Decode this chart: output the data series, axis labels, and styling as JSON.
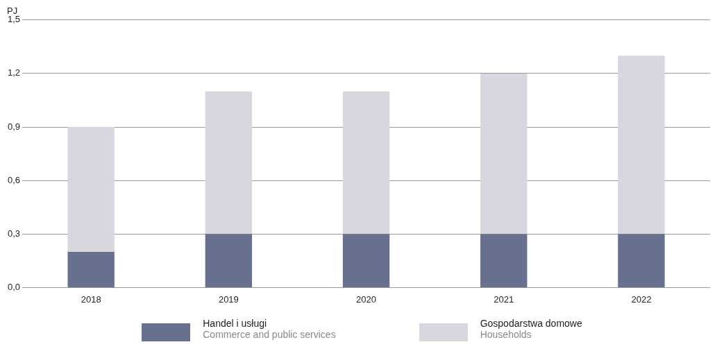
{
  "chart_data": {
    "type": "bar",
    "ylabel": "PJ",
    "categories": [
      "2018",
      "2019",
      "2020",
      "2021",
      "2022"
    ],
    "series": [
      {
        "name": "Handel i usługi\nCommerce and public services",
        "color": "#67718f",
        "values": [
          0.2,
          0.3,
          0.3,
          0.3,
          0.3
        ]
      },
      {
        "name": "Gospodarstwa domowe\nHouseholds",
        "color": "#d8d7e0",
        "values": [
          0.7,
          0.8,
          0.8,
          0.9,
          1.0
        ]
      }
    ],
    "stacked": true,
    "ylim": [
      0,
      1.5
    ],
    "yticks": [
      {
        "value": 0,
        "label": "0,0"
      },
      {
        "value": 0.3,
        "label": "0,3"
      },
      {
        "value": 0.6,
        "label": "0,6"
      },
      {
        "value": 0.9,
        "label": "0,9"
      },
      {
        "value": 1.2,
        "label": "1,2"
      },
      {
        "value": 1.5,
        "label": "1,5"
      }
    ],
    "grid": "y",
    "legend": "bottom"
  }
}
